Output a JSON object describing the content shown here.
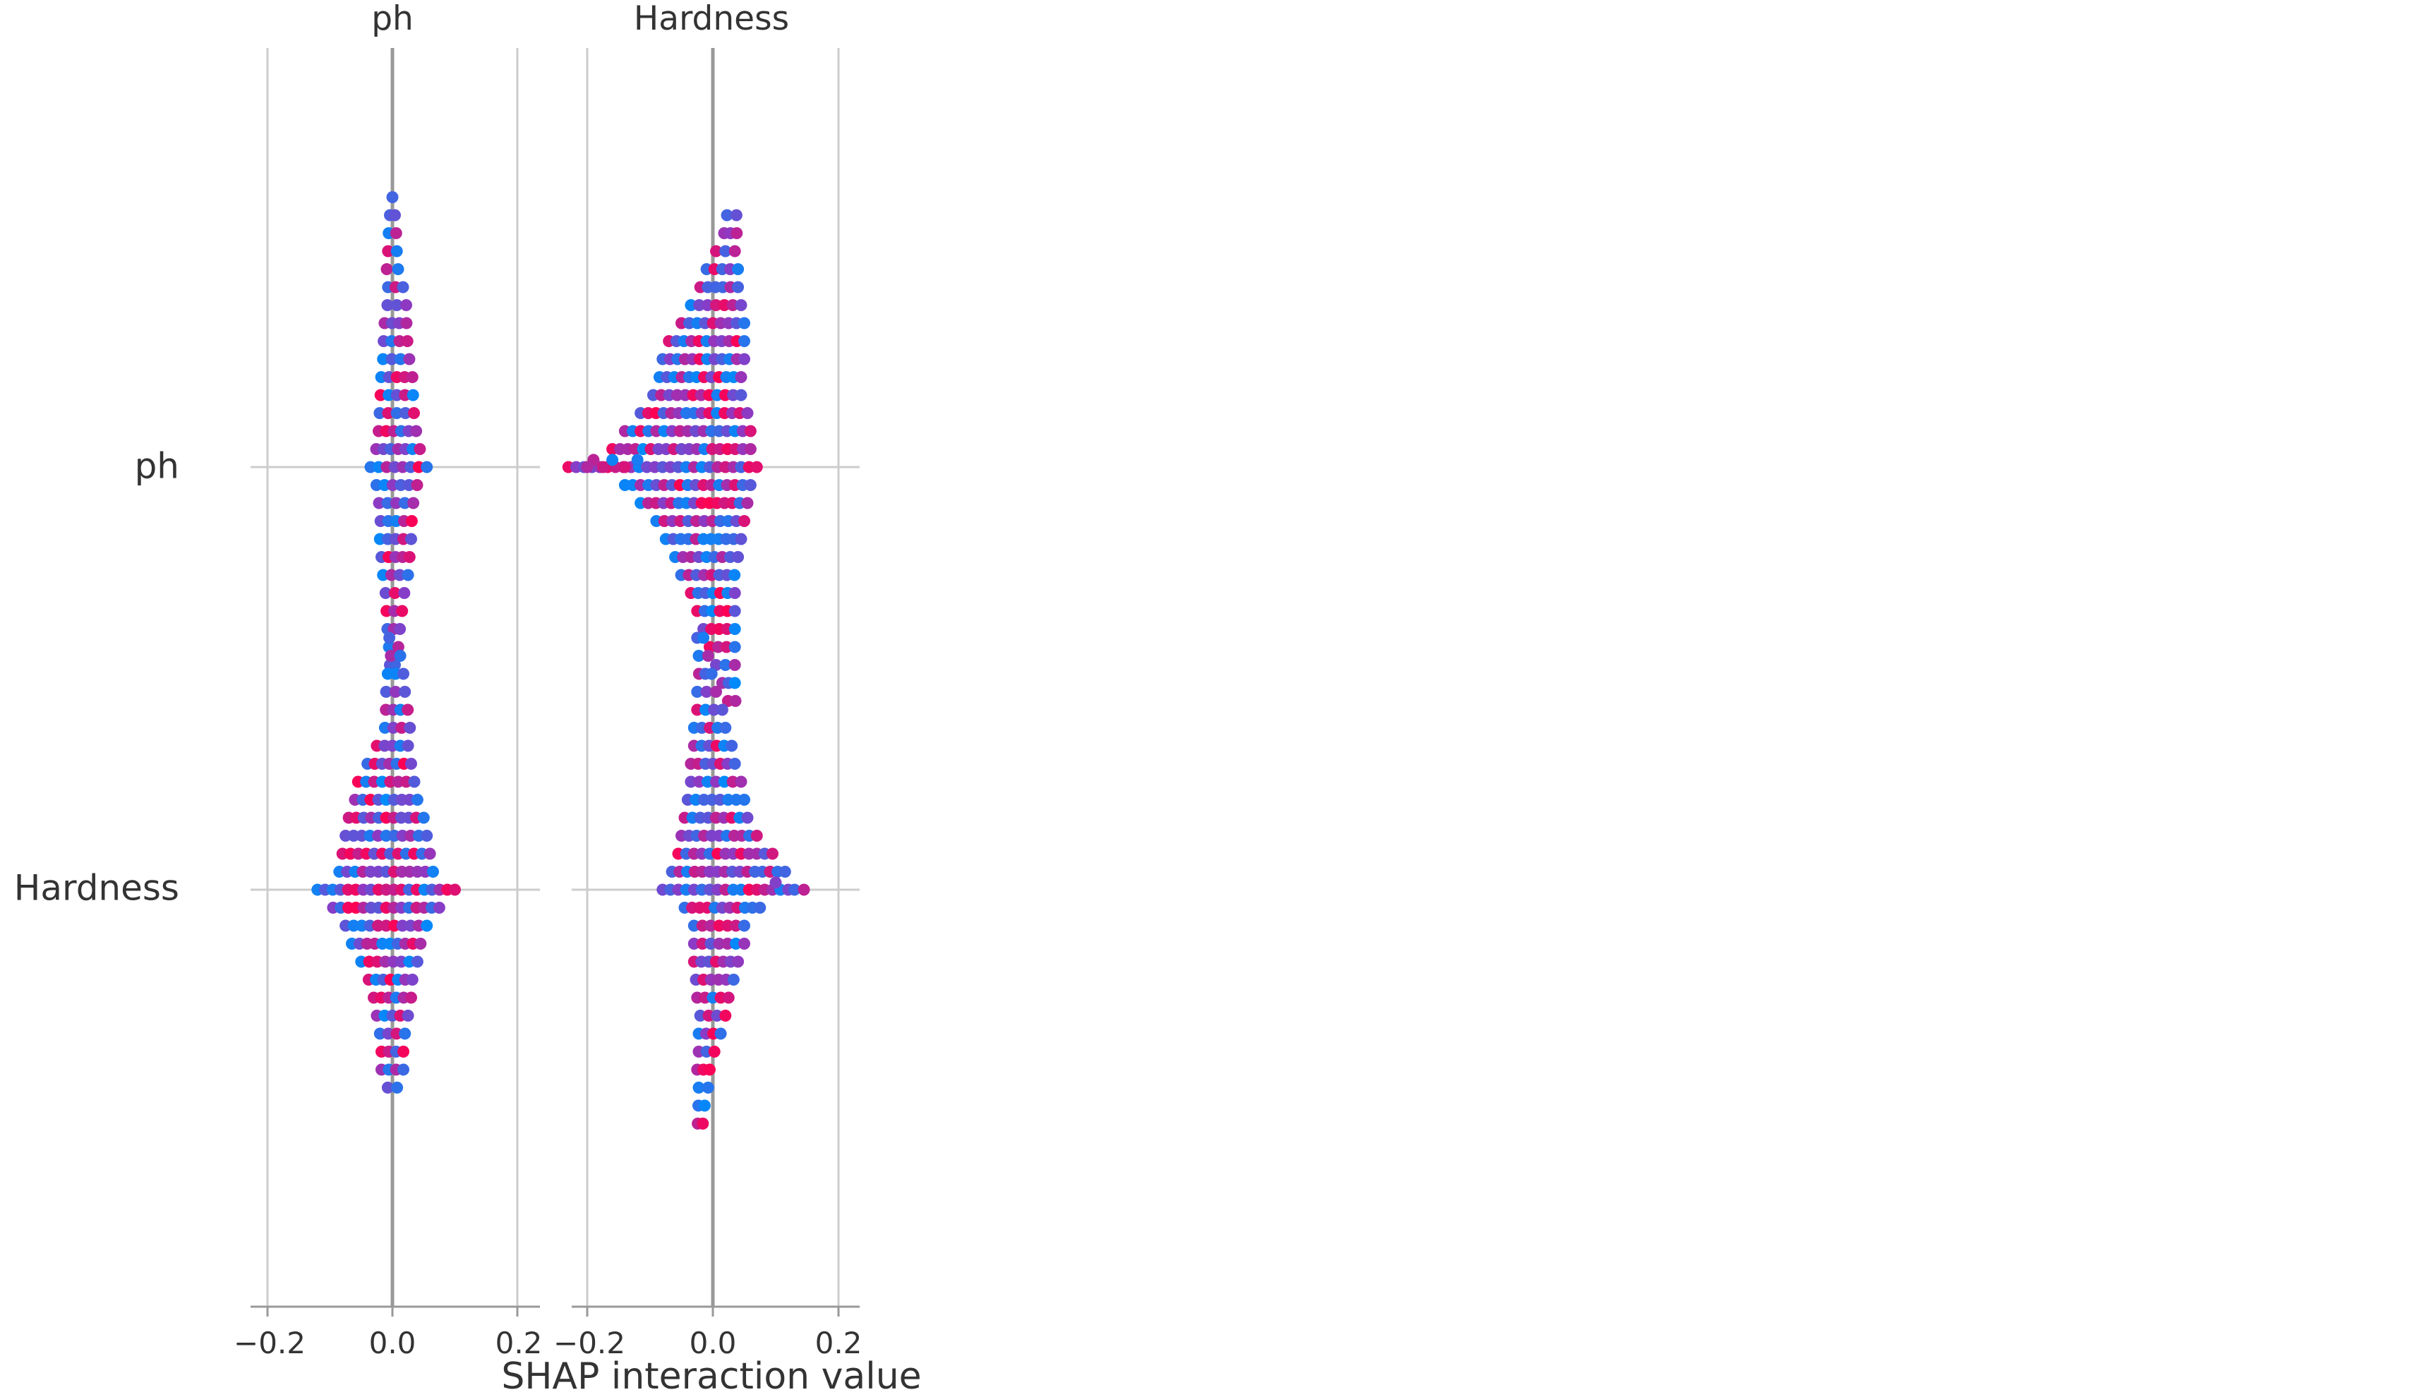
{
  "chart_data": {
    "type": "scatter",
    "title": "",
    "xlabel": "SHAP interaction value",
    "ylabel": "",
    "column_titles": [
      "ph",
      "Hardness"
    ],
    "row_labels": [
      "ph",
      "Hardness"
    ],
    "xlim": [
      -0.2,
      0.2
    ],
    "x_ticks": [
      -0.2,
      0.0,
      0.2
    ],
    "x_tick_labels": [
      "−0.2",
      "0.0",
      "0.2"
    ],
    "grid": true,
    "colors": {
      "low": "#008bfb",
      "high": "#ff0052",
      "gridline": "#cccccc",
      "zeroline": "#999999"
    },
    "panels": [
      {
        "row": "ph",
        "col": "ph",
        "seed": 11,
        "spread": 0.016,
        "tail": 0.012,
        "spine": [
          [
            15,
            0.0,
            0.003
          ],
          [
            14,
            0.0,
            0.008
          ],
          [
            13,
            0.0,
            0.012
          ],
          [
            12,
            0.0,
            0.014
          ],
          [
            11,
            0.0,
            0.018
          ],
          [
            10,
            0.005,
            0.024
          ],
          [
            9,
            0.007,
            0.03
          ],
          [
            8,
            0.005,
            0.035
          ],
          [
            7,
            0.005,
            0.038
          ],
          [
            6,
            0.006,
            0.042
          ],
          [
            5,
            0.007,
            0.05
          ],
          [
            4,
            0.007,
            0.052
          ],
          [
            3,
            0.007,
            0.055
          ],
          [
            2,
            0.008,
            0.06
          ],
          [
            1,
            0.009,
            0.07
          ],
          [
            0,
            0.01,
            0.09
          ],
          [
            -1,
            0.007,
            0.065
          ],
          [
            -2,
            0.006,
            0.055
          ],
          [
            -3,
            0.006,
            0.05
          ],
          [
            -4,
            0.005,
            0.05
          ],
          [
            -5,
            0.005,
            0.045
          ],
          [
            -6,
            0.005,
            0.04
          ],
          [
            -7,
            0.004,
            0.03
          ],
          [
            -8,
            0.003,
            0.025
          ],
          [
            -9,
            0.002,
            0.02
          ],
          [
            -10,
            0.002,
            0.015
          ],
          [
            -11,
            0.0,
            0.008
          ]
        ],
        "outliers": []
      },
      {
        "row": "ph",
        "col": "Hardness",
        "seed": 23,
        "spread": 0.03,
        "tail": 0.045,
        "spine": [
          [
            14,
            0.03,
            0.015
          ],
          [
            13,
            0.028,
            0.02
          ],
          [
            12,
            0.02,
            0.03
          ],
          [
            11,
            0.015,
            0.05
          ],
          [
            10,
            0.01,
            0.06
          ],
          [
            9,
            0.005,
            0.08
          ],
          [
            8,
            0.0,
            0.1
          ],
          [
            7,
            -0.01,
            0.12
          ],
          [
            6,
            -0.015,
            0.13
          ],
          [
            5,
            -0.02,
            0.13
          ],
          [
            4,
            -0.025,
            0.14
          ],
          [
            3,
            -0.03,
            0.17
          ],
          [
            2,
            -0.04,
            0.2
          ],
          [
            1,
            -0.05,
            0.22
          ],
          [
            0,
            -0.08,
            0.3
          ],
          [
            -1,
            -0.04,
            0.2
          ],
          [
            -2,
            -0.03,
            0.17
          ],
          [
            -3,
            -0.02,
            0.14
          ],
          [
            -4,
            -0.015,
            0.12
          ],
          [
            -5,
            -0.01,
            0.1
          ],
          [
            -6,
            -0.008,
            0.085
          ],
          [
            -7,
            0.0,
            0.07
          ],
          [
            -8,
            0.005,
            0.06
          ],
          [
            -9,
            0.01,
            0.05
          ],
          [
            -10,
            0.015,
            0.04
          ],
          [
            -11,
            0.02,
            0.03
          ],
          [
            -12,
            0.025,
            0.02
          ],
          [
            -13,
            0.03,
            0.012
          ]
        ],
        "outliers": [
          [
            -0.19,
            1
          ],
          [
            -0.16,
            1
          ],
          [
            -0.12,
            1
          ],
          [
            -0.2,
            0
          ],
          [
            -0.175,
            0
          ],
          [
            -0.14,
            0
          ]
        ]
      },
      {
        "row": "Hardness",
        "col": "ph",
        "seed": 37,
        "spread": 0.018,
        "tail": 0.02,
        "spine": [
          [
            14,
            -0.005,
            0.003
          ],
          [
            13,
            0.005,
            0.015
          ],
          [
            12,
            0.005,
            0.025
          ],
          [
            11,
            0.005,
            0.03
          ],
          [
            10,
            0.007,
            0.035
          ],
          [
            9,
            0.008,
            0.04
          ],
          [
            8,
            0.0,
            0.05
          ],
          [
            7,
            -0.005,
            0.07
          ],
          [
            6,
            -0.01,
            0.09
          ],
          [
            5,
            -0.01,
            0.1
          ],
          [
            4,
            -0.01,
            0.12
          ],
          [
            3,
            -0.01,
            0.13
          ],
          [
            2,
            -0.01,
            0.14
          ],
          [
            1,
            -0.01,
            0.15
          ],
          [
            0,
            -0.01,
            0.22
          ],
          [
            -1,
            -0.01,
            0.17
          ],
          [
            -2,
            -0.01,
            0.13
          ],
          [
            -3,
            -0.01,
            0.11
          ],
          [
            -4,
            -0.005,
            0.09
          ],
          [
            -5,
            -0.003,
            0.07
          ],
          [
            -6,
            0.0,
            0.06
          ],
          [
            -7,
            0.0,
            0.05
          ],
          [
            -8,
            0.0,
            0.04
          ],
          [
            -9,
            0.0,
            0.035
          ],
          [
            -10,
            0.0,
            0.035
          ],
          [
            -11,
            0.0,
            0.015
          ]
        ],
        "outliers": []
      },
      {
        "row": "Hardness",
        "col": "Hardness",
        "seed": 53,
        "spread": 0.025,
        "tail": 0.035,
        "spine": [
          [
            14,
            -0.02,
            0.01
          ],
          [
            13,
            -0.015,
            0.015
          ],
          [
            12,
            -0.012,
            0.02
          ],
          [
            11,
            -0.01,
            0.03
          ],
          [
            10,
            -0.005,
            0.04
          ],
          [
            9,
            -0.005,
            0.05
          ],
          [
            8,
            0.0,
            0.06
          ],
          [
            7,
            0.0,
            0.07
          ],
          [
            6,
            0.005,
            0.08
          ],
          [
            5,
            0.005,
            0.09
          ],
          [
            4,
            0.005,
            0.1
          ],
          [
            3,
            0.01,
            0.12
          ],
          [
            2,
            0.02,
            0.15
          ],
          [
            1,
            0.025,
            0.18
          ],
          [
            0,
            0.02,
            0.2
          ],
          [
            -1,
            0.015,
            0.12
          ],
          [
            -2,
            0.01,
            0.08
          ],
          [
            -3,
            0.01,
            0.08
          ],
          [
            -4,
            0.005,
            0.07
          ],
          [
            -5,
            0.003,
            0.06
          ],
          [
            -6,
            0.0,
            0.05
          ],
          [
            -7,
            0.0,
            0.04
          ],
          [
            -8,
            -0.005,
            0.035
          ],
          [
            -9,
            -0.01,
            0.025
          ],
          [
            -10,
            -0.015,
            0.02
          ],
          [
            -11,
            -0.015,
            0.015
          ],
          [
            -12,
            -0.018,
            0.01
          ],
          [
            -13,
            -0.02,
            0.008
          ]
        ],
        "outliers": [
          [
            0.13,
            0
          ],
          [
            0.145,
            0
          ],
          [
            0.1,
            1
          ]
        ]
      }
    ]
  }
}
